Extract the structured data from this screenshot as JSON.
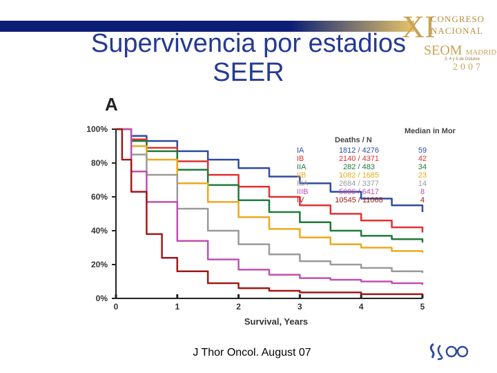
{
  "slide": {
    "title_line1": "Supervivencia por estadios",
    "title_line2": "SEER",
    "citation": "J Thor Oncol. August 07"
  },
  "logo": {
    "roman": "XI",
    "line1": "CONGRESO",
    "line2": "NACIONAL",
    "brand": "SEOM",
    "city": "MADRID",
    "dates": "3, 4 y 5 de Octubre",
    "year": "2007"
  },
  "colors": {
    "title": "#253a92",
    "IA": "#2f4aa0",
    "IB": "#e23030",
    "IIA": "#1e7a3a",
    "IIB": "#f0a81a",
    "IIIA": "#9a9a9a",
    "IIIB": "#c050b0",
    "IV": "#a01818"
  },
  "chart_data": {
    "type": "line",
    "panel_label": "A",
    "title": "",
    "xlabel": "Survival, Years",
    "ylabel": "",
    "xlim": [
      0,
      5
    ],
    "ylim": [
      0,
      100
    ],
    "x_ticks": [
      0,
      1,
      2,
      3,
      4,
      5
    ],
    "y_ticks": [
      "0%",
      "20%",
      "40%",
      "60%",
      "80%",
      "100%"
    ],
    "legend_header_deaths": "Deaths / N",
    "legend_header_median": "Median in Months",
    "series": [
      {
        "name": "IA",
        "deaths_n": "1812 / 4276",
        "median": "59",
        "x": [
          0,
          0.25,
          0.5,
          1,
          1.5,
          2,
          2.5,
          3,
          3.5,
          4,
          4.5,
          5
        ],
        "values": [
          100,
          96,
          93,
          87,
          82,
          77,
          72,
          68,
          63,
          59,
          55,
          51
        ]
      },
      {
        "name": "IB",
        "deaths_n": "2140 / 4371",
        "median": "42",
        "x": [
          0,
          0.25,
          0.5,
          1,
          1.5,
          2,
          2.5,
          3,
          3.5,
          4,
          4.5,
          5
        ],
        "values": [
          100,
          94,
          89,
          81,
          73,
          66,
          60,
          55,
          50,
          46,
          42,
          39
        ]
      },
      {
        "name": "IIA",
        "deaths_n": "282 / 483",
        "median": "34",
        "x": [
          0,
          0.25,
          0.5,
          1,
          1.5,
          2,
          2.5,
          3,
          3.5,
          4,
          4.5,
          5
        ],
        "values": [
          100,
          93,
          87,
          76,
          67,
          58,
          51,
          45,
          40,
          37,
          35,
          33
        ]
      },
      {
        "name": "IIB",
        "deaths_n": "1082 / 1685",
        "median": "23",
        "x": [
          0,
          0.25,
          0.5,
          1,
          1.5,
          2,
          2.5,
          3,
          3.5,
          4,
          4.5,
          5
        ],
        "values": [
          100,
          90,
          82,
          68,
          57,
          48,
          41,
          36,
          32,
          30,
          28,
          27
        ]
      },
      {
        "name": "IIIA",
        "deaths_n": "2684 / 3377",
        "median": "14",
        "x": [
          0,
          0.25,
          0.5,
          1,
          1.5,
          2,
          2.5,
          3,
          3.5,
          4,
          4.5,
          5
        ],
        "values": [
          100,
          85,
          73,
          53,
          40,
          32,
          26,
          22,
          20,
          18,
          16,
          15
        ]
      },
      {
        "name": "IIIB",
        "deaths_n": "5086 / 6417",
        "median": "8",
        "x": [
          0,
          0.25,
          0.5,
          1,
          1.5,
          2,
          2.5,
          3,
          3.5,
          4,
          4.5,
          5
        ],
        "values": [
          100,
          75,
          57,
          34,
          23,
          17,
          14,
          12,
          11,
          10,
          9,
          8
        ]
      },
      {
        "name": "IV",
        "deaths_n": "10545 / 11068",
        "median": "4",
        "x": [
          0,
          0.1,
          0.25,
          0.5,
          0.75,
          1,
          1.5,
          2,
          2.5,
          3,
          4,
          5
        ],
        "values": [
          100,
          82,
          63,
          38,
          24,
          16,
          9,
          6,
          4.5,
          3.5,
          2.5,
          2
        ]
      }
    ]
  }
}
